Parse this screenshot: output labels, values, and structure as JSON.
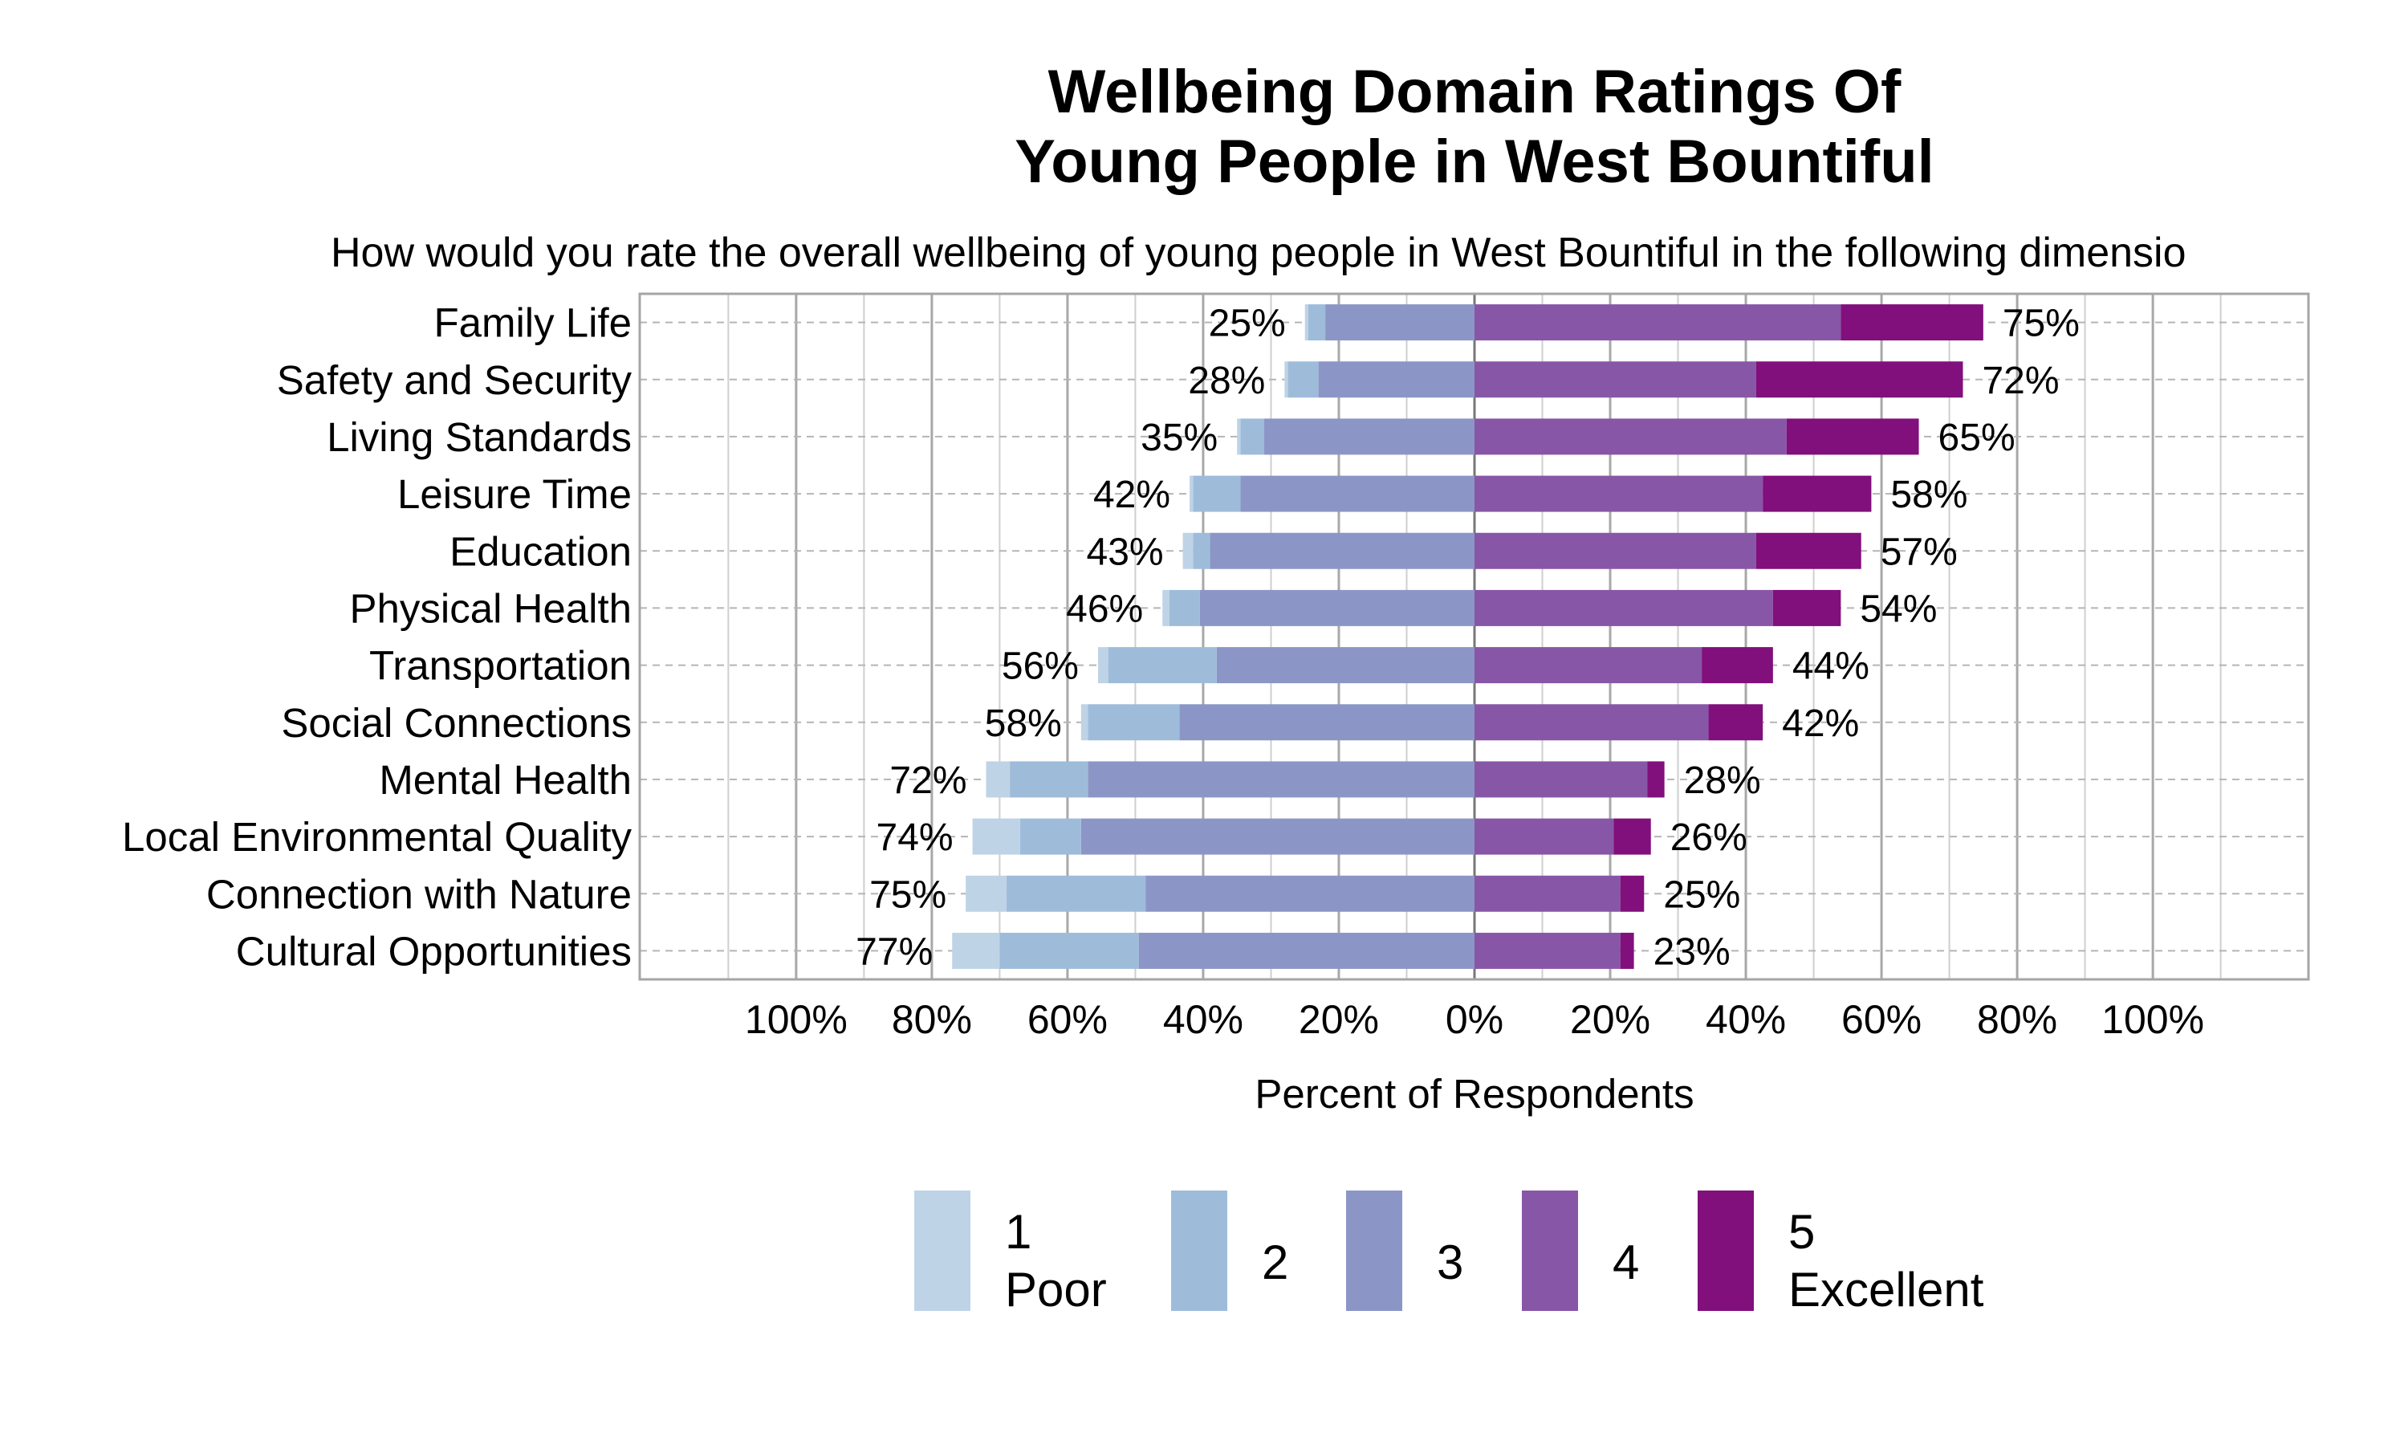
{
  "chart_data": {
    "type": "bar",
    "orientation": "horizontal",
    "stacking": "diverging",
    "title_lines": [
      "Wellbeing Domain Ratings Of",
      "Young People in West Bountiful"
    ],
    "subtitle": "How would you rate the overall wellbeing of young people in West Bountiful in the following dimensio",
    "xlabel": "Percent of Respondents",
    "x_ticks": [
      {
        "value": -100,
        "label": "100%"
      },
      {
        "value": -80,
        "label": "80%"
      },
      {
        "value": -60,
        "label": "60%"
      },
      {
        "value": -40,
        "label": "40%"
      },
      {
        "value": -20,
        "label": "20%"
      },
      {
        "value": 0,
        "label": "0%"
      },
      {
        "value": 20,
        "label": "20%"
      },
      {
        "value": 40,
        "label": "40%"
      },
      {
        "value": 60,
        "label": "60%"
      },
      {
        "value": 80,
        "label": "80%"
      },
      {
        "value": 100,
        "label": "100%"
      }
    ],
    "xlim": [
      -123,
      123
    ],
    "grid": true,
    "legend_position": "bottom",
    "categories": [
      "Family Life",
      "Safety and Security",
      "Living Standards",
      "Leisure Time",
      "Education",
      "Physical Health",
      "Transportation",
      "Social Connections",
      "Mental Health",
      "Local Environmental Quality",
      "Connection with Nature",
      "Cultural Opportunities"
    ],
    "series": [
      {
        "name": "1 Poor",
        "legend_lines": [
          "1",
          "Poor"
        ],
        "side": "negative",
        "color": "#bfd3e6",
        "values": [
          0.5,
          0.5,
          0.5,
          0.5,
          1.5,
          1.0,
          1.5,
          1.0,
          3.5,
          7.0,
          6.0,
          7.0
        ]
      },
      {
        "name": "2",
        "legend_lines": [
          "2"
        ],
        "side": "negative",
        "color": "#9ebcda",
        "values": [
          2.5,
          4.5,
          3.5,
          7.0,
          2.5,
          4.5,
          16.0,
          13.5,
          11.5,
          9.0,
          20.5,
          20.5
        ]
      },
      {
        "name": "3",
        "legend_lines": [
          "3"
        ],
        "side": "negative",
        "color": "#8c96c6",
        "values": [
          22.0,
          23.0,
          31.0,
          34.5,
          39.0,
          40.5,
          38.0,
          43.5,
          57.0,
          58.0,
          48.5,
          49.5
        ]
      },
      {
        "name": "4",
        "legend_lines": [
          "4"
        ],
        "side": "positive",
        "color": "#8856a7",
        "values": [
          54.0,
          41.5,
          46.0,
          42.5,
          41.5,
          44.0,
          33.5,
          34.5,
          25.5,
          20.5,
          21.5,
          21.5
        ]
      },
      {
        "name": "5 Excellent",
        "legend_lines": [
          "5",
          "Excellent"
        ],
        "side": "positive",
        "color": "#810f7c",
        "values": [
          21.0,
          30.5,
          19.5,
          16.0,
          15.5,
          10.0,
          10.5,
          8.0,
          2.5,
          5.5,
          3.5,
          2.0
        ]
      }
    ],
    "negative_labels": [
      "25%",
      "28%",
      "35%",
      "42%",
      "43%",
      "46%",
      "56%",
      "58%",
      "72%",
      "74%",
      "75%",
      "77%"
    ],
    "positive_labels": [
      "75%",
      "72%",
      "65%",
      "58%",
      "57%",
      "54%",
      "44%",
      "42%",
      "28%",
      "26%",
      "25%",
      "23%"
    ]
  }
}
